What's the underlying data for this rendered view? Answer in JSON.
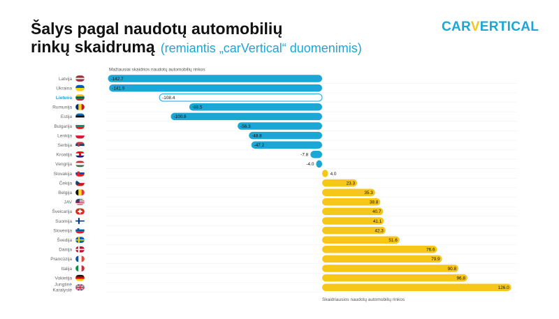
{
  "title": {
    "line1": "Šalys pagal naudotų automobilių",
    "line2": "rinkų skaidrumą",
    "subtitle": "(remiantis „carVertical“ duomenimis)"
  },
  "logo": {
    "part1": "CAR",
    "part2": "V",
    "part3": "ERTICAL"
  },
  "colors": {
    "negative": "#1aa7d6",
    "positive": "#f6c618",
    "highlight_fill": "#ffffff",
    "highlight_text": "#1aa7d6"
  },
  "chart_data": {
    "type": "bar",
    "orientation": "horizontal",
    "top_annotation": "Mažiausiai skaidrios naudotų automobilių rinkos",
    "bottom_annotation": "Skaidriausios naudotų automobilių rinkos",
    "highlight": "Lietuva",
    "categories": [
      "Latvija",
      "Ukraina",
      "Lietuva",
      "Rumunija",
      "Estija",
      "Bulgarija",
      "Lenkija",
      "Serbija",
      "Kroatija",
      "Vengrija",
      "Slovakija",
      "Čekija",
      "Belgija",
      "JAV",
      "Šveicarija",
      "Suomija",
      "Slovėnija",
      "Švedija",
      "Danija",
      "Prancūzija",
      "Italija",
      "Vokietija",
      "Jungtinė Karalystė"
    ],
    "values": [
      -142.7,
      -141.9,
      -108.4,
      -88.5,
      -100.8,
      -56.3,
      -48.8,
      -47.2,
      -7.8,
      -4.0,
      4.0,
      23.3,
      35.3,
      38.8,
      40.7,
      41.1,
      42.3,
      51.6,
      76.6,
      79.9,
      90.8,
      96.8,
      126.0
    ],
    "labels": [
      "-142.7",
      "-141.9",
      "-108.4",
      "-88.5",
      "-100.8",
      "-56.3",
      "-48.8",
      "-47.2",
      "-7.8",
      "-4.0",
      "4.0",
      "23.3",
      "35.3",
      "38.8",
      "40.7",
      "41.1",
      "42.3",
      "51.6",
      "76.6",
      "79.9",
      "90.8",
      "96.8",
      "126.0"
    ],
    "flags": [
      "latvia-flag",
      "ukraine-flag",
      "lithuania-flag",
      "romania-flag",
      "estonia-flag",
      "bulgaria-flag",
      "poland-flag",
      "serbia-flag",
      "croatia-flag",
      "hungary-flag",
      "slovakia-flag",
      "czechia-flag",
      "belgium-flag",
      "usa-flag",
      "switzerland-flag",
      "finland-flag",
      "slovenia-flag",
      "sweden-flag",
      "denmark-flag",
      "france-flag",
      "italy-flag",
      "germany-flag",
      "uk-flag"
    ],
    "xlim": [
      -142.7,
      126.0
    ],
    "grid": false,
    "legend": "none"
  }
}
